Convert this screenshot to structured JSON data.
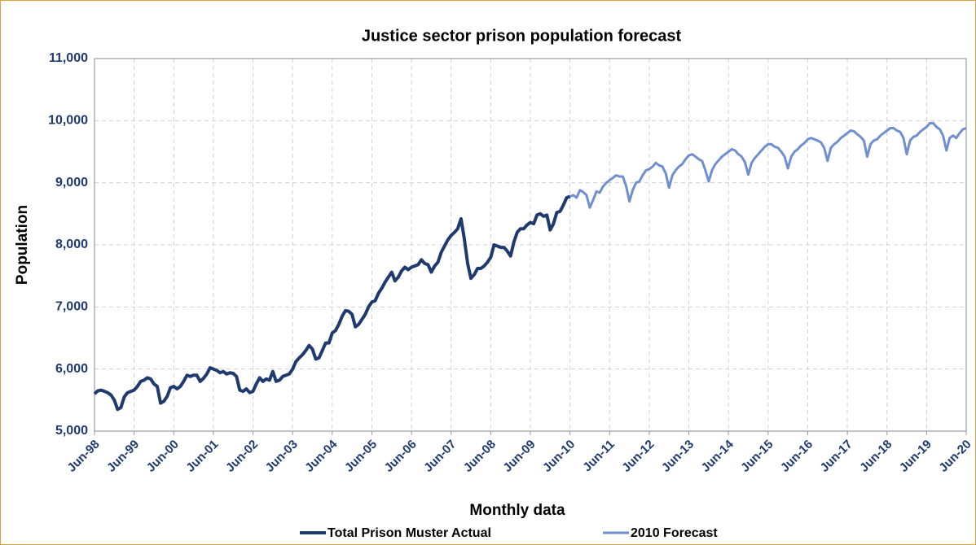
{
  "chart_data": {
    "type": "line",
    "title": "Justice sector prison population forecast",
    "x_label": "Monthly data",
    "y_label": "Population",
    "categories": [
      "Jun-98",
      null,
      null,
      null,
      null,
      null,
      null,
      null,
      null,
      null,
      null,
      null,
      "Jun-99",
      null,
      null,
      null,
      null,
      null,
      null,
      null,
      null,
      null,
      null,
      null,
      "Jun-00",
      null,
      null,
      null,
      null,
      null,
      null,
      null,
      null,
      null,
      null,
      null,
      "Jun-01",
      null,
      null,
      null,
      null,
      null,
      null,
      null,
      null,
      null,
      null,
      null,
      "Jun-02",
      null,
      null,
      null,
      null,
      null,
      null,
      null,
      null,
      null,
      null,
      null,
      "Jun-03",
      null,
      null,
      null,
      null,
      null,
      null,
      null,
      null,
      null,
      null,
      null,
      "Jun-04",
      null,
      null,
      null,
      null,
      null,
      null,
      null,
      null,
      null,
      null,
      null,
      "Jun-05",
      null,
      null,
      null,
      null,
      null,
      null,
      null,
      null,
      null,
      null,
      null,
      "Jun-06",
      null,
      null,
      null,
      null,
      null,
      null,
      null,
      null,
      null,
      null,
      null,
      "Jun-07",
      null,
      null,
      null,
      null,
      null,
      null,
      null,
      null,
      null,
      null,
      null,
      "Jun-08",
      null,
      null,
      null,
      null,
      null,
      null,
      null,
      null,
      null,
      null,
      null,
      "Jun-09",
      null,
      null,
      null,
      null,
      null,
      null,
      null,
      null,
      null,
      null,
      null,
      "Jun-10",
      null,
      null,
      null,
      null,
      null,
      null,
      null,
      null,
      null,
      null,
      null,
      "Jun-11",
      null,
      null,
      null,
      null,
      null,
      null,
      null,
      null,
      null,
      null,
      null,
      "Jun-12",
      null,
      null,
      null,
      null,
      null,
      null,
      null,
      null,
      null,
      null,
      null,
      "Jun-13",
      null,
      null,
      null,
      null,
      null,
      null,
      null,
      null,
      null,
      null,
      null,
      "Jun-14",
      null,
      null,
      null,
      null,
      null,
      null,
      null,
      null,
      null,
      null,
      null,
      "Jun-15",
      null,
      null,
      null,
      null,
      null,
      null,
      null,
      null,
      null,
      null,
      null,
      "Jun-16",
      null,
      null,
      null,
      null,
      null,
      null,
      null,
      null,
      null,
      null,
      null,
      "Jun-17",
      null,
      null,
      null,
      null,
      null,
      null,
      null,
      null,
      null,
      null,
      null,
      "Jun-18",
      null,
      null,
      null,
      null,
      null,
      null,
      null,
      null,
      null,
      null,
      null,
      "Jun-19",
      null,
      null,
      null,
      null,
      null,
      null,
      null,
      null,
      null,
      null,
      null,
      "Jun-20"
    ],
    "series": [
      {
        "name": "Total Prison Muster Actual",
        "color": "#1f3a6e",
        "width": 4,
        "values": [
          5600,
          5650,
          5660,
          5640,
          5620,
          5580,
          5500,
          5350,
          5380,
          5550,
          5620,
          5640,
          5660,
          5720,
          5800,
          5820,
          5860,
          5840,
          5760,
          5720,
          5450,
          5480,
          5560,
          5700,
          5720,
          5680,
          5720,
          5800,
          5900,
          5880,
          5900,
          5900,
          5800,
          5850,
          5920,
          6020,
          6000,
          5980,
          5940,
          5960,
          5920,
          5940,
          5930,
          5880,
          5660,
          5640,
          5680,
          5620,
          5640,
          5760,
          5860,
          5800,
          5840,
          5820,
          5960,
          5800,
          5820,
          5880,
          5900,
          5920,
          6000,
          6120,
          6180,
          6230,
          6300,
          6380,
          6320,
          6160,
          6180,
          6300,
          6420,
          6420,
          6580,
          6620,
          6720,
          6850,
          6940,
          6930,
          6880,
          6680,
          6720,
          6800,
          6880,
          7000,
          7080,
          7100,
          7220,
          7300,
          7400,
          7480,
          7560,
          7420,
          7480,
          7580,
          7640,
          7600,
          7640,
          7660,
          7680,
          7760,
          7700,
          7680,
          7560,
          7660,
          7720,
          7880,
          7980,
          8080,
          8150,
          8200,
          8260,
          8420,
          8100,
          7700,
          7460,
          7520,
          7620,
          7620,
          7660,
          7720,
          7800,
          8000,
          7980,
          7960,
          7960,
          7900,
          7820,
          8040,
          8200,
          8260,
          8260,
          8320,
          8360,
          8340,
          8480,
          8500,
          8460,
          8480,
          8240,
          8340,
          8520,
          8540,
          8640,
          8760,
          8780,
          null,
          null,
          null,
          null,
          null,
          null,
          null,
          null,
          null,
          null,
          null,
          null,
          null,
          null,
          null,
          null,
          null,
          null,
          null,
          null,
          null,
          null,
          null,
          null,
          null,
          null,
          null,
          null,
          null,
          null,
          null,
          null,
          null,
          null,
          null,
          null,
          null,
          null,
          null,
          null,
          null,
          null,
          null,
          null,
          null,
          null,
          null,
          null,
          null,
          null,
          null,
          null,
          null,
          null,
          null,
          null,
          null,
          null,
          null,
          null,
          null,
          null,
          null,
          null,
          null,
          null,
          null,
          null,
          null,
          null,
          null,
          null,
          null,
          null,
          null,
          null,
          null,
          null,
          null,
          null,
          null,
          null,
          null,
          null,
          null,
          null,
          null,
          null,
          null,
          null,
          null,
          null,
          null,
          null,
          null,
          null,
          null,
          null,
          null,
          null,
          null,
          null,
          null,
          null,
          null,
          null,
          null,
          null,
          null,
          null,
          null,
          null,
          null,
          null,
          null,
          null,
          null,
          null,
          null,
          null
        ]
      },
      {
        "name": "2010 Forecast",
        "color": "#6f8fcf",
        "width": 3,
        "values": [
          null,
          null,
          null,
          null,
          null,
          null,
          null,
          null,
          null,
          null,
          null,
          null,
          null,
          null,
          null,
          null,
          null,
          null,
          null,
          null,
          null,
          null,
          null,
          null,
          null,
          null,
          null,
          null,
          null,
          null,
          null,
          null,
          null,
          null,
          null,
          null,
          null,
          null,
          null,
          null,
          null,
          null,
          null,
          null,
          null,
          null,
          null,
          null,
          null,
          null,
          null,
          null,
          null,
          null,
          null,
          null,
          null,
          null,
          null,
          null,
          null,
          null,
          null,
          null,
          null,
          null,
          null,
          null,
          null,
          null,
          null,
          null,
          null,
          null,
          null,
          null,
          null,
          null,
          null,
          null,
          null,
          null,
          null,
          null,
          null,
          null,
          null,
          null,
          null,
          null,
          null,
          null,
          null,
          null,
          null,
          null,
          null,
          null,
          null,
          null,
          null,
          null,
          null,
          null,
          null,
          null,
          null,
          null,
          null,
          null,
          null,
          null,
          null,
          null,
          null,
          null,
          null,
          null,
          null,
          null,
          null,
          null,
          null,
          null,
          null,
          null,
          null,
          null,
          null,
          null,
          null,
          null,
          null,
          null,
          null,
          null,
          null,
          null,
          null,
          null,
          null,
          null,
          null,
          null,
          8780,
          8800,
          8760,
          8880,
          8850,
          8800,
          8600,
          8720,
          8860,
          8840,
          8940,
          9000,
          9040,
          9080,
          9120,
          9100,
          9100,
          8950,
          8700,
          8880,
          9000,
          9020,
          9120,
          9200,
          9220,
          9260,
          9320,
          9280,
          9260,
          9150,
          8920,
          9120,
          9200,
          9260,
          9300,
          9380,
          9440,
          9460,
          9420,
          9380,
          9350,
          9200,
          9020,
          9200,
          9300,
          9360,
          9420,
          9460,
          9500,
          9540,
          9520,
          9460,
          9420,
          9330,
          9130,
          9320,
          9400,
          9460,
          9520,
          9580,
          9620,
          9620,
          9580,
          9560,
          9500,
          9420,
          9230,
          9420,
          9500,
          9540,
          9600,
          9640,
          9700,
          9720,
          9700,
          9680,
          9650,
          9560,
          9350,
          9560,
          9620,
          9660,
          9720,
          9760,
          9800,
          9840,
          9830,
          9780,
          9740,
          9680,
          9420,
          9620,
          9680,
          9700,
          9760,
          9800,
          9840,
          9880,
          9880,
          9840,
          9820,
          9720,
          9460,
          9680,
          9740,
          9760,
          9820,
          9860,
          9900,
          9960,
          9960,
          9900,
          9860,
          9760,
          9520,
          9720,
          9760,
          9720,
          9800,
          9860,
          9880
        ]
      }
    ],
    "ylim": [
      5000,
      11000
    ],
    "yticks": [
      {
        "value": 5000,
        "label": "5,000"
      },
      {
        "value": 6000,
        "label": "6,000"
      },
      {
        "value": 7000,
        "label": "7,000"
      },
      {
        "value": 8000,
        "label": "8,000"
      },
      {
        "value": 9000,
        "label": "9,000"
      },
      {
        "value": 10000,
        "label": "10,000"
      },
      {
        "value": 11000,
        "label": "11,000"
      }
    ],
    "grid": true,
    "legend": "bottom"
  }
}
